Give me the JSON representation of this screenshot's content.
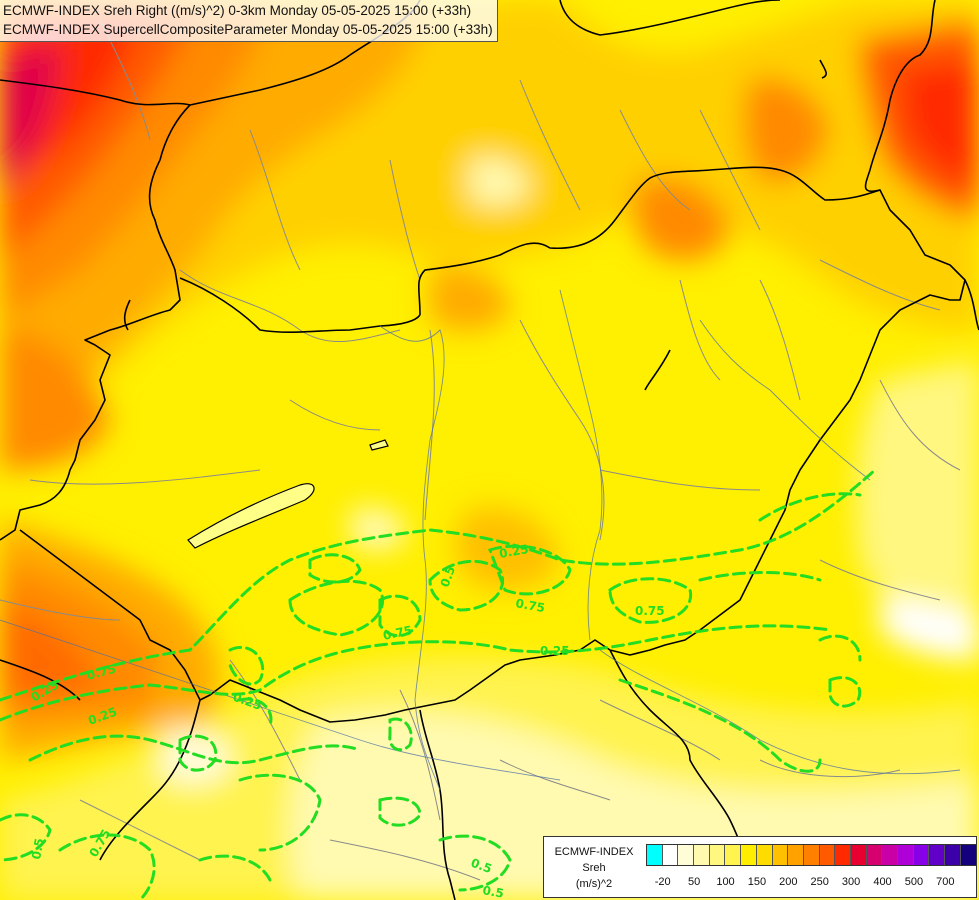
{
  "titles": {
    "line1": "ECMWF-INDEX Sreh Right ((m/s)^2) 0-3km Monday 05-05-2025 15:00 (+33h)",
    "line2": "ECMWF-INDEX SupercellCompositeParameter Monday 05-05-2025 15:00 (+33h)"
  },
  "legend": {
    "line1": "ECMWF-INDEX",
    "line2": "Sreh",
    "line3": "(m/s)^2",
    "colors": [
      "#00ffff",
      "#ffffff",
      "#fffcd8",
      "#fffab0",
      "#fff780",
      "#fff350",
      "#ffee00",
      "#ffdc00",
      "#ffc000",
      "#ffa200",
      "#ff8000",
      "#ff5a00",
      "#ff2a00",
      "#e80030",
      "#d6006e",
      "#c800a6",
      "#b000d8",
      "#8800e8",
      "#6000c8",
      "#3c00a8",
      "#14007c"
    ],
    "ticks": [
      "-20",
      "50",
      "100",
      "150",
      "200",
      "250",
      "300",
      "400",
      "500",
      "700"
    ]
  },
  "contour_labels": [
    "0.25",
    "0.75",
    "0.5",
    "0.75",
    "0.25",
    "0.75",
    "0.75",
    "0.25",
    "0.25",
    "0.25",
    "0.5",
    "0.5",
    "0.5",
    "0.75"
  ],
  "colors": {
    "contour": "#22dd22",
    "border": "#000000",
    "region": "#8a8a8a"
  }
}
